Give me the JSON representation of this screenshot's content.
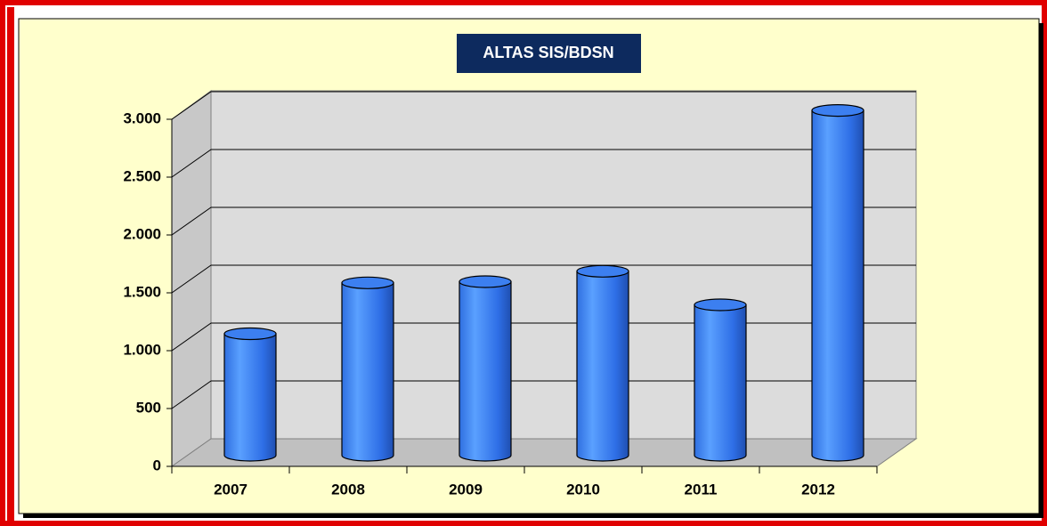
{
  "chart_data": {
    "type": "bar",
    "title": "ALTAS  SIS/BDSN",
    "categories": [
      "2007",
      "2008",
      "2009",
      "2010",
      "2011",
      "2012"
    ],
    "values": [
      1050,
      1490,
      1500,
      1590,
      1300,
      2980
    ],
    "color": "#3c7ff0",
    "ylim": [
      0,
      3000
    ],
    "yticks": [
      0,
      500,
      {
        "value": 1000,
        "label": "1.000"
      },
      {
        "value": 1500,
        "label": "1.500"
      },
      {
        "value": 2000,
        "label": "2.000"
      },
      {
        "value": 2500,
        "label": "2.500"
      },
      {
        "value": 3000,
        "label": "3.000"
      }
    ],
    "grid": true
  }
}
